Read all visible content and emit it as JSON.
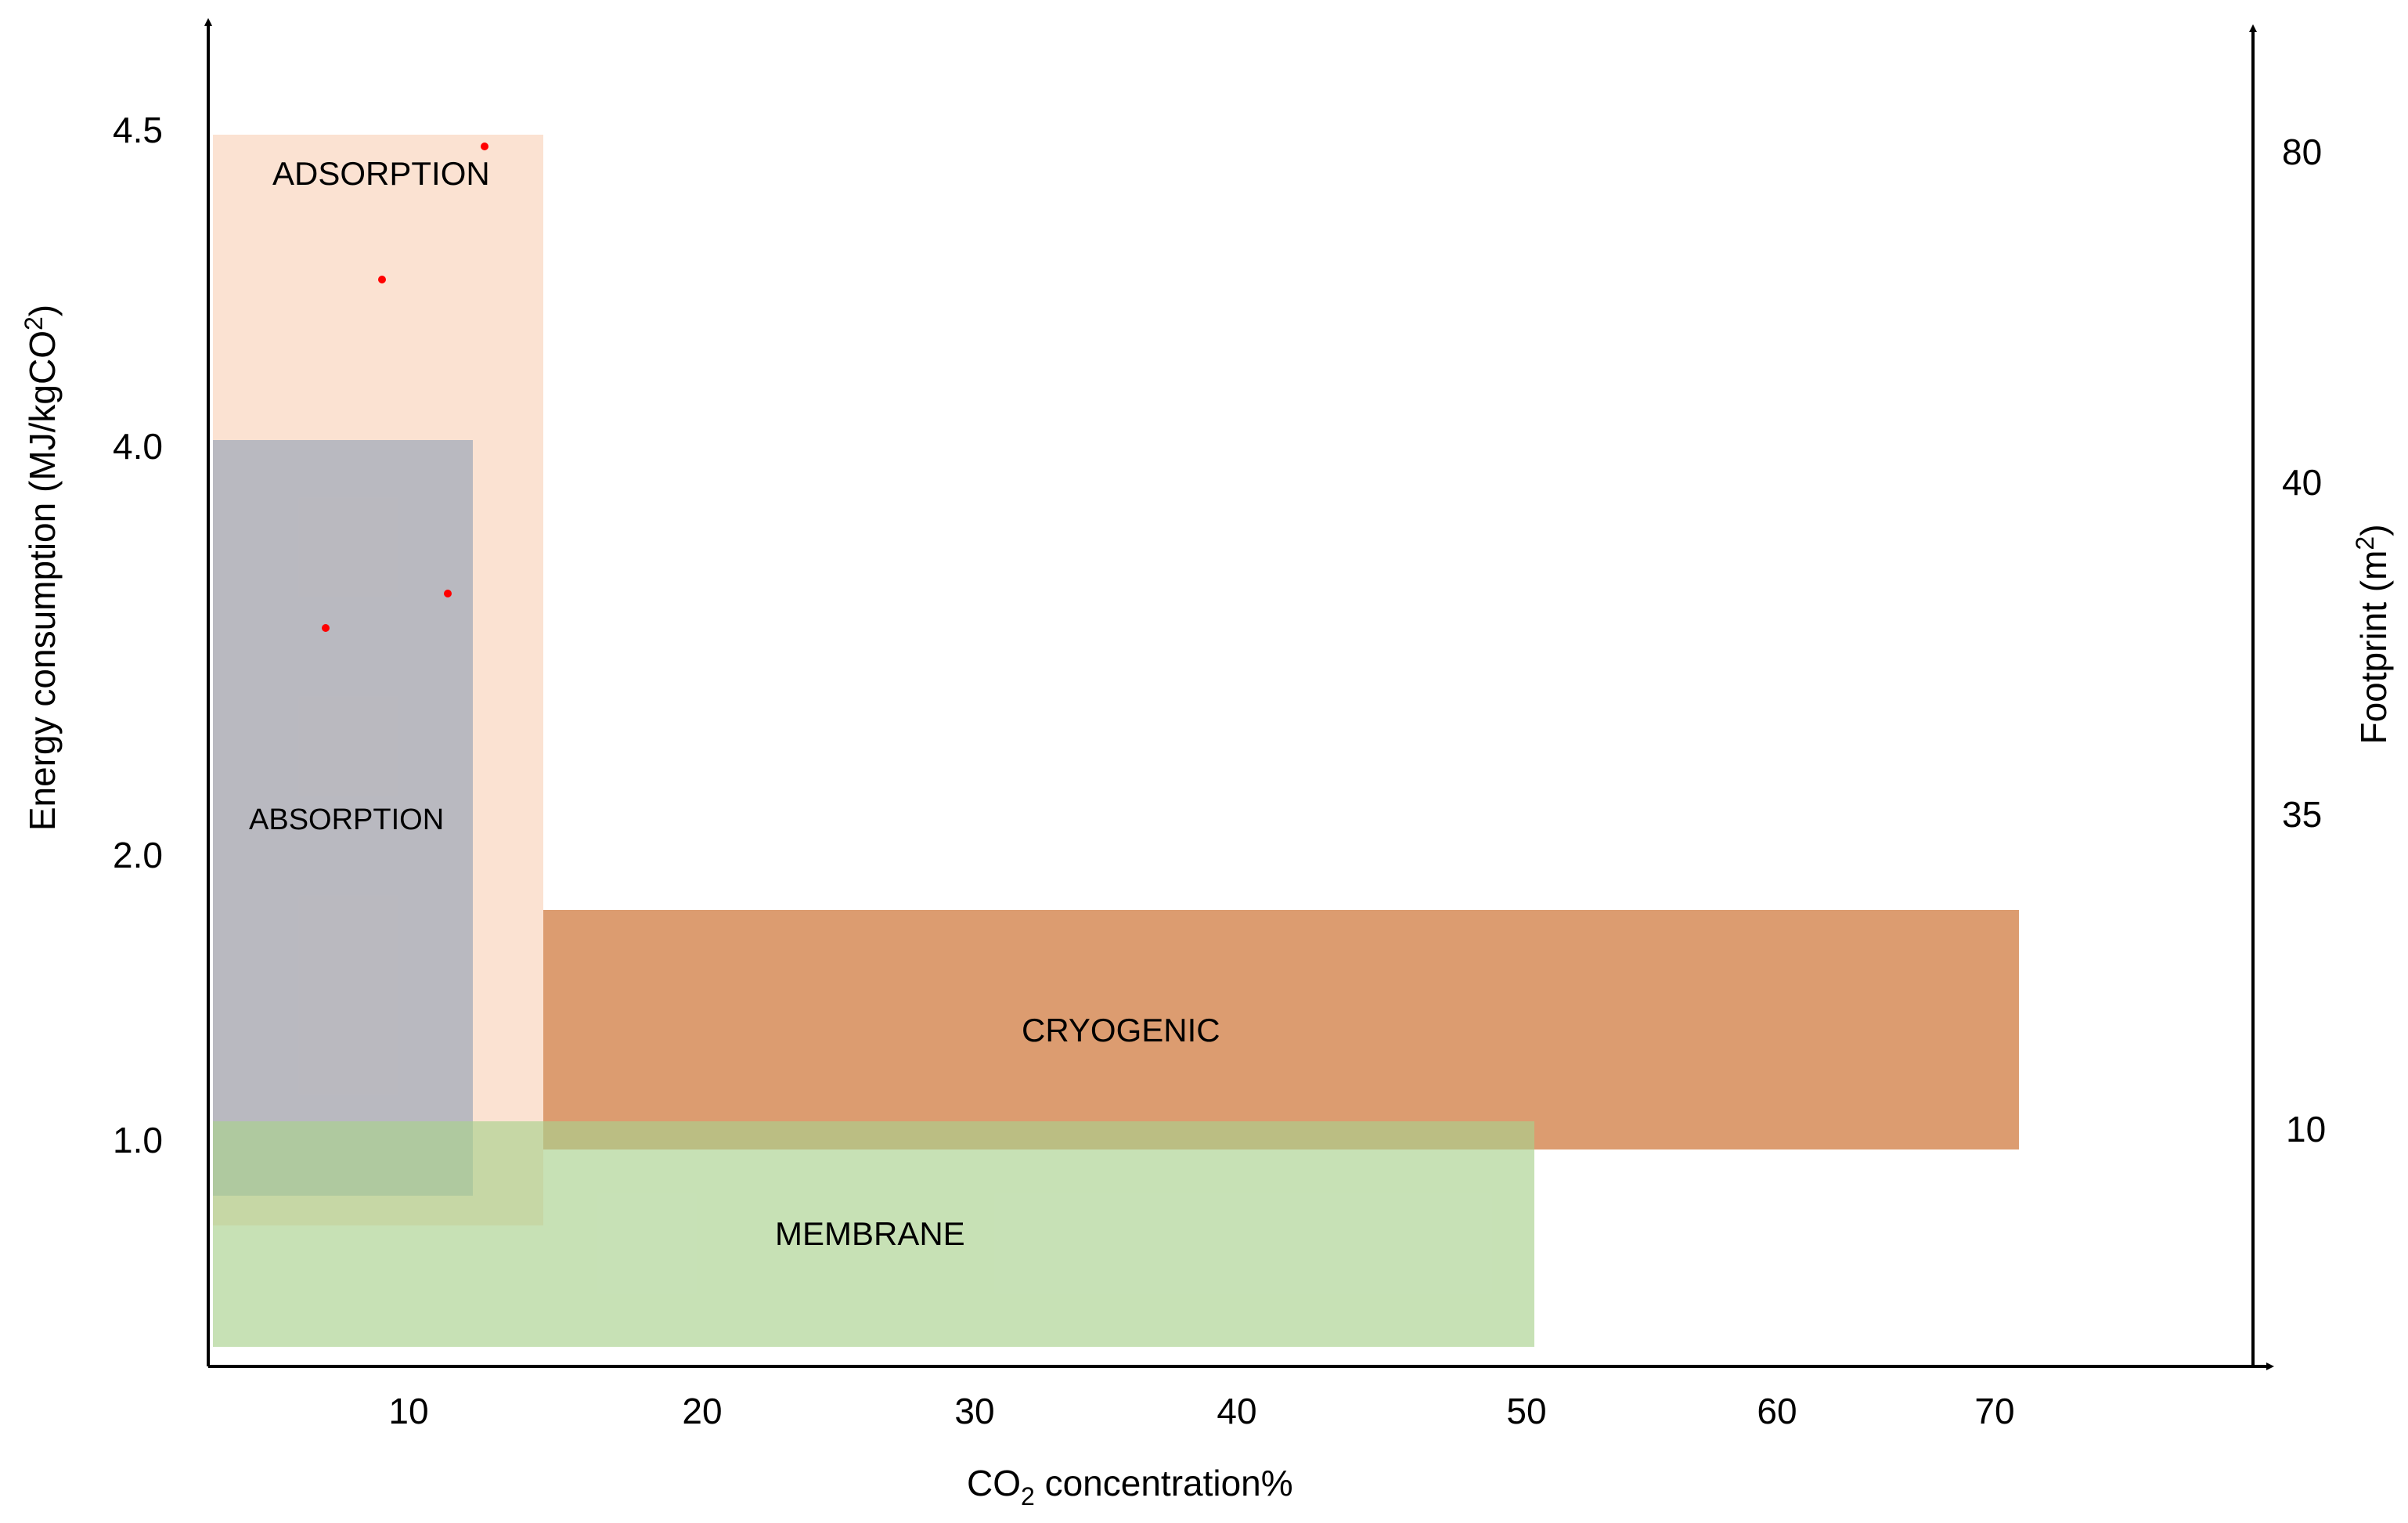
{
  "chart_data": {
    "type": "range-region",
    "xlabel": "CO2 concentration%",
    "xlabel_parts": [
      "CO",
      "2",
      " concentration%"
    ],
    "ylabel_left": "Energy consumption  (MJ/kgCO2)",
    "ylabel_left_parts": [
      "Energy consumption  (MJ/kgCO",
      "2",
      ")"
    ],
    "ylabel_right": "Footprint (m2)",
    "ylabel_right_parts": [
      "Footprint (m",
      "2",
      ")"
    ],
    "x_ticks": [
      "10",
      "20",
      "30",
      "40",
      "50",
      "60",
      "70"
    ],
    "y_left_ticks": [
      "4.5",
      "4.0",
      "2.0",
      "1.0"
    ],
    "y_right_ticks": [
      "80",
      "40",
      "35",
      "10"
    ],
    "regions": [
      {
        "name": "ADSORPTION",
        "color": "#f8cbad",
        "opacity": 0.55,
        "x_range": [
          "min",
          "~15"
        ],
        "y_range": [
          "~0.8",
          "4.5"
        ]
      },
      {
        "name": "ABSORPTION",
        "color": "#8497b0",
        "opacity": 0.55,
        "x_range": [
          "min",
          "~12"
        ],
        "y_range": [
          "~0.85",
          "4.0"
        ]
      },
      {
        "name": "CRYOGENIC",
        "color": "#c55a11",
        "opacity": 0.6,
        "x_range": [
          "~15",
          "~70"
        ],
        "y_range": [
          "1.0",
          "~1.8"
        ]
      },
      {
        "name": "MEMBRANE",
        "color": "#a9d18e",
        "opacity": 0.65,
        "x_range": [
          "min",
          "~50"
        ],
        "y_range": [
          "min",
          "~1.05"
        ]
      }
    ],
    "markers": [
      {
        "color": "#ff0000"
      },
      {
        "color": "#ff0000"
      },
      {
        "color": "#ff0000"
      },
      {
        "color": "#ff0000"
      }
    ],
    "axis_color": "#000000",
    "grid": false,
    "legend": "none"
  }
}
